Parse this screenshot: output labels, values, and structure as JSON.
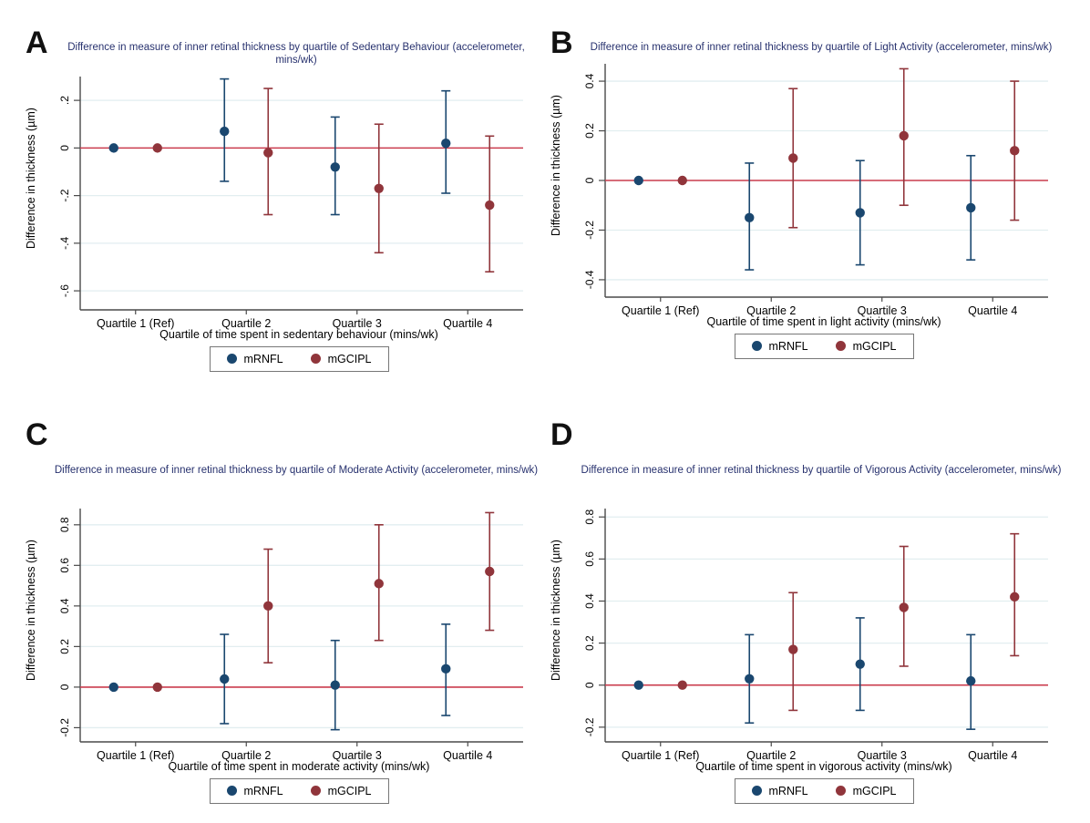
{
  "figure": {
    "title_color": "#27316e",
    "refline_color": "#cb3c4e",
    "grid_color": "#e2eef0",
    "axis_color": "#4a4a4a",
    "series_colors": {
      "mRNFL": "#1a476f",
      "mGCIPL": "#90353b"
    }
  },
  "chart_data": [
    {
      "panel": "A",
      "type": "scatter",
      "title": "Difference in measure of inner retinal thickness by quartile of Sedentary Behaviour (accelerometer, mins/wk)",
      "xlabel": "Quartile of time spent in sedentary behaviour (mins/wk)",
      "ylabel": "Difference in thickness (µm)",
      "categories": [
        "Quartile 1 (Ref)",
        "Quartile 2",
        "Quartile 3",
        "Quartile 4"
      ],
      "ytick_labels": [
        ".2",
        "0",
        "-.2",
        "-.4",
        "-.6"
      ],
      "ytick_values": [
        0.2,
        0,
        -0.2,
        -0.4,
        -0.6
      ],
      "ylim": [
        -0.68,
        0.3
      ],
      "refline": 0,
      "legend_position": "bottom",
      "grid": true,
      "series": [
        {
          "name": "mRNFL",
          "color": "#1a476f",
          "values": [
            0,
            0.07,
            -0.08,
            0.02
          ],
          "ci_low": [
            null,
            -0.14,
            -0.28,
            -0.19
          ],
          "ci_high": [
            null,
            0.29,
            0.13,
            0.24
          ]
        },
        {
          "name": "mGCIPL",
          "color": "#90353b",
          "values": [
            0,
            -0.02,
            -0.17,
            -0.24
          ],
          "ci_low": [
            null,
            -0.28,
            -0.44,
            -0.52
          ],
          "ci_high": [
            null,
            0.25,
            0.1,
            0.05
          ]
        }
      ]
    },
    {
      "panel": "B",
      "type": "scatter",
      "title": "Difference in measure of inner retinal thickness by quartile of Light Activity (accelerometer, mins/wk)",
      "xlabel": "Quartile of time spent in light activity (mins/wk)",
      "ylabel": "Difference in thickness (µm)",
      "categories": [
        "Quartile 1 (Ref)",
        "Quartile 2",
        "Quartile 3",
        "Quartile 4"
      ],
      "ytick_labels": [
        "0.4",
        "0.2",
        "0",
        "-0.2",
        "-0.4"
      ],
      "ytick_values": [
        0.4,
        0.2,
        0,
        -0.2,
        -0.4
      ],
      "ylim": [
        -0.47,
        0.47
      ],
      "refline": 0,
      "legend_position": "bottom",
      "grid": true,
      "series": [
        {
          "name": "mRNFL",
          "color": "#1a476f",
          "values": [
            0,
            -0.15,
            -0.13,
            -0.11
          ],
          "ci_low": [
            null,
            -0.36,
            -0.34,
            -0.32
          ],
          "ci_high": [
            null,
            0.07,
            0.08,
            0.1
          ]
        },
        {
          "name": "mGCIPL",
          "color": "#90353b",
          "values": [
            0,
            0.09,
            0.18,
            0.12
          ],
          "ci_low": [
            null,
            -0.19,
            -0.1,
            -0.16
          ],
          "ci_high": [
            null,
            0.37,
            0.45,
            0.4
          ]
        }
      ]
    },
    {
      "panel": "C",
      "type": "scatter",
      "title": "Difference in measure of inner retinal thickness by quartile of Moderate Activity (accelerometer, mins/wk)",
      "xlabel": "Quartile of time spent in moderate activity (mins/wk)",
      "ylabel": "Difference in thickness (µm)",
      "categories": [
        "Quartile 1 (Ref)",
        "Quartile 2",
        "Quartile 3",
        "Quartile 4"
      ],
      "ytick_labels": [
        "0.8",
        "0.6",
        "0.4",
        "0.2",
        "0",
        "-0.2"
      ],
      "ytick_values": [
        0.8,
        0.6,
        0.4,
        0.2,
        0,
        -0.2
      ],
      "ylim": [
        -0.27,
        0.88
      ],
      "refline": 0,
      "legend_position": "bottom",
      "grid": true,
      "series": [
        {
          "name": "mRNFL",
          "color": "#1a476f",
          "values": [
            0,
            0.04,
            0.01,
            0.09
          ],
          "ci_low": [
            null,
            -0.18,
            -0.21,
            -0.14
          ],
          "ci_high": [
            null,
            0.26,
            0.23,
            0.31
          ]
        },
        {
          "name": "mGCIPL",
          "color": "#90353b",
          "values": [
            0,
            0.4,
            0.51,
            0.57
          ],
          "ci_low": [
            null,
            0.12,
            0.23,
            0.28
          ],
          "ci_high": [
            null,
            0.68,
            0.8,
            0.86
          ]
        }
      ]
    },
    {
      "panel": "D",
      "type": "scatter",
      "title": "Difference in measure of inner retinal thickness by quartile of Vigorous Activity (accelerometer, mins/wk)",
      "xlabel": "Quartile of time spent in vigorous activity (mins/wk)",
      "ylabel": "Difference in thickness (µm)",
      "categories": [
        "Quartile 1 (Ref)",
        "Quartile 2",
        "Quartile 3",
        "Quartile 4"
      ],
      "ytick_labels": [
        "0.8",
        "0.6",
        "0.4",
        "0.2",
        "0",
        "-0.2"
      ],
      "ytick_values": [
        0.8,
        0.6,
        0.4,
        0.2,
        0,
        -0.2
      ],
      "ylim": [
        -0.27,
        0.84
      ],
      "refline": 0,
      "legend_position": "bottom",
      "grid": true,
      "series": [
        {
          "name": "mRNFL",
          "color": "#1a476f",
          "values": [
            0,
            0.03,
            0.1,
            0.02
          ],
          "ci_low": [
            null,
            -0.18,
            -0.12,
            -0.21
          ],
          "ci_high": [
            null,
            0.24,
            0.32,
            0.24
          ]
        },
        {
          "name": "mGCIPL",
          "color": "#90353b",
          "values": [
            0,
            0.17,
            0.37,
            0.42
          ],
          "ci_low": [
            null,
            -0.12,
            0.09,
            0.14
          ],
          "ci_high": [
            null,
            0.44,
            0.66,
            0.72
          ]
        }
      ]
    }
  ]
}
